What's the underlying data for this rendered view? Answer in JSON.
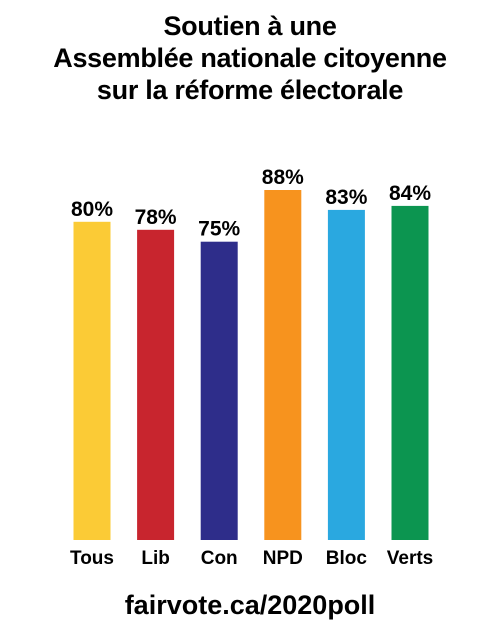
{
  "title": {
    "lines": [
      "Soutien à une",
      "Assemblée nationale citoyenne",
      "sur la réforme électorale"
    ]
  },
  "footer": {
    "url": "fairvote.ca/2020poll"
  },
  "chart_data": {
    "type": "bar",
    "title": "Soutien à une Assemblée nationale citoyenne sur la réforme électorale",
    "xlabel": "",
    "ylabel": "",
    "categories": [
      "Tous",
      "Lib",
      "Con",
      "NPD",
      "Bloc",
      "Verts"
    ],
    "values": [
      80,
      78,
      75,
      88,
      83,
      84
    ],
    "value_labels": [
      "80%",
      "78%",
      "75%",
      "88%",
      "83%",
      "84%"
    ],
    "colors": [
      "#FBCB36",
      "#C8252E",
      "#2E2D8A",
      "#F7931E",
      "#2AA8E0",
      "#0C9550"
    ],
    "ylim": [
      0,
      100
    ],
    "grid": false,
    "legend": "none"
  }
}
